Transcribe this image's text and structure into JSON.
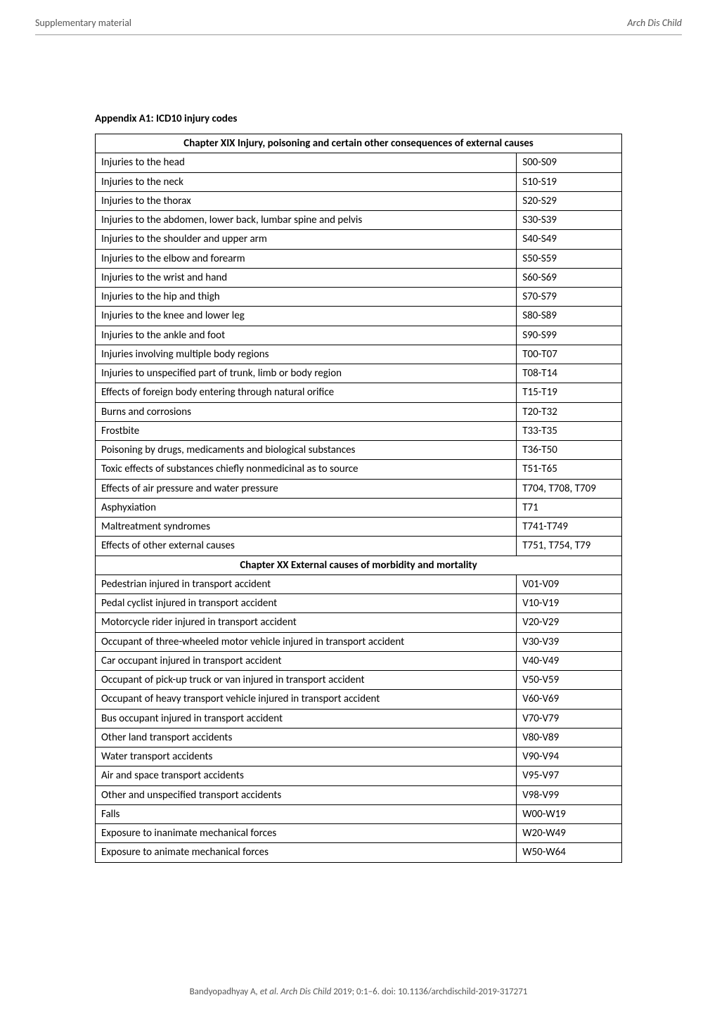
{
  "header": {
    "left": "Supplementary material",
    "right": "Arch Dis Child"
  },
  "appendix_title": "Appendix A1: ICD10 injury codes",
  "table": {
    "section1_header": "Chapter XIX Injury, poisoning and certain other consequences of external causes",
    "section1_rows": [
      {
        "desc": "Injuries to the head",
        "code": "S00-S09"
      },
      {
        "desc": "Injuries to the neck",
        "code": "S10-S19"
      },
      {
        "desc": "Injuries to the thorax",
        "code": "S20-S29"
      },
      {
        "desc": "Injuries to the abdomen, lower back, lumbar spine and pelvis",
        "code": "S30-S39"
      },
      {
        "desc": "Injuries to the shoulder and upper arm",
        "code": "S40-S49"
      },
      {
        "desc": "Injuries to the elbow and forearm",
        "code": "S50-S59"
      },
      {
        "desc": "Injuries to the wrist and hand",
        "code": "S60-S69"
      },
      {
        "desc": "Injuries to the hip and thigh",
        "code": "S70-S79"
      },
      {
        "desc": "Injuries to the knee and lower leg",
        "code": "S80-S89"
      },
      {
        "desc": "Injuries to the ankle and foot",
        "code": "S90-S99"
      },
      {
        "desc": "Injuries involving multiple body regions",
        "code": "T00-T07"
      },
      {
        "desc": "Injuries to unspecified part of trunk, limb or body region",
        "code": "T08-T14"
      },
      {
        "desc": "Effects of foreign body entering through natural orifice",
        "code": "T15-T19"
      },
      {
        "desc": "Burns and corrosions",
        "code": "T20-T32"
      },
      {
        "desc": "Frostbite",
        "code": "T33-T35"
      },
      {
        "desc": "Poisoning by drugs, medicaments and biological substances",
        "code": "T36-T50"
      },
      {
        "desc": "Toxic effects of substances chiefly nonmedicinal as to source",
        "code": "T51-T65"
      },
      {
        "desc": "Effects of air pressure and water pressure",
        "code": "T704, T708, T709"
      },
      {
        "desc": "Asphyxiation",
        "code": "T71"
      },
      {
        "desc": "Maltreatment syndromes",
        "code": "T741-T749"
      },
      {
        "desc": "Effects of other external causes",
        "code": "T751, T754, T79"
      }
    ],
    "section2_header": "Chapter XX External causes of morbidity and mortality",
    "section2_rows": [
      {
        "desc": "Pedestrian injured in transport accident",
        "code": "V01-V09"
      },
      {
        "desc": "Pedal cyclist injured in transport accident",
        "code": "V10-V19"
      },
      {
        "desc": "Motorcycle rider injured in transport accident",
        "code": "V20-V29"
      },
      {
        "desc": "Occupant of three-wheeled motor vehicle injured in transport accident",
        "code": "V30-V39"
      },
      {
        "desc": "Car occupant injured in transport accident",
        "code": "V40-V49"
      },
      {
        "desc": "Occupant of pick-up truck or van injured in transport accident",
        "code": "V50-V59"
      },
      {
        "desc": "Occupant of heavy transport vehicle injured in transport accident",
        "code": "V60-V69"
      },
      {
        "desc": "Bus occupant injured in transport accident",
        "code": "V70-V79"
      },
      {
        "desc": "Other land transport accidents",
        "code": "V80-V89"
      },
      {
        "desc": "Water transport accidents",
        "code": "V90-V94"
      },
      {
        "desc": "Air and space transport accidents",
        "code": "V95-V97"
      },
      {
        "desc": "Other and unspecified transport accidents",
        "code": "V98-V99"
      },
      {
        "desc": "Falls",
        "code": "W00-W19"
      },
      {
        "desc": "Exposure to inanimate mechanical forces",
        "code": "W20-W49"
      },
      {
        "desc": "Exposure to animate mechanical forces",
        "code": "W50-W64"
      }
    ]
  },
  "footer": {
    "authors": "Bandyopadhyay A",
    "etal": ", et al. Arch Dis Child",
    "citation": " 2019; 0:1–6. doi: 10.1136/archdischild-2019-317271"
  }
}
